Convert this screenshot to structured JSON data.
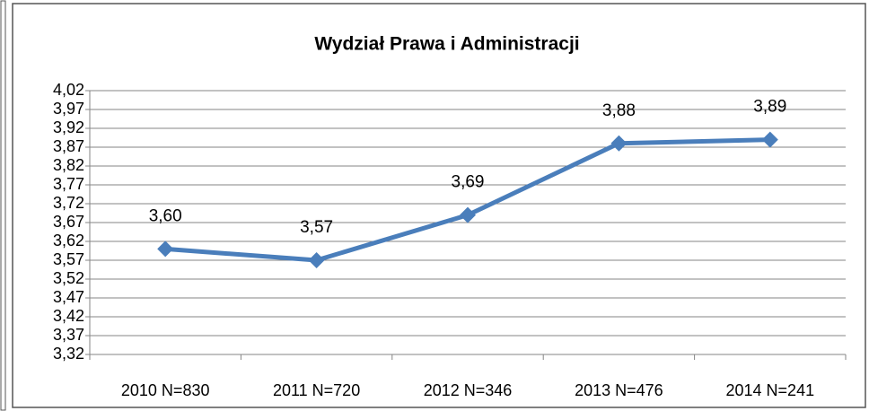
{
  "chart_data": {
    "type": "line",
    "title": "Wydział Prawa i Administracji",
    "categories": [
      "2010 N=830",
      "2011 N=720",
      "2012 N=346",
      "2013 N=476",
      "2014 N=241"
    ],
    "series": [
      {
        "color": "#4a7ebb",
        "values": [
          3.6,
          3.57,
          3.69,
          3.88,
          3.89
        ],
        "value_labels": [
          "3,60",
          "3,57",
          "3,69",
          "3,88",
          "3,89"
        ]
      }
    ],
    "ylim": [
      3.32,
      4.02
    ],
    "yticks": [
      {
        "value": 3.32,
        "label": "3,32"
      },
      {
        "value": 3.37,
        "label": "3,37"
      },
      {
        "value": 3.42,
        "label": "3,42"
      },
      {
        "value": 3.47,
        "label": "3,47"
      },
      {
        "value": 3.52,
        "label": "3,52"
      },
      {
        "value": 3.57,
        "label": "3,57"
      },
      {
        "value": 3.62,
        "label": "3,62"
      },
      {
        "value": 3.67,
        "label": "3,67"
      },
      {
        "value": 3.72,
        "label": "3,72"
      },
      {
        "value": 3.77,
        "label": "3,77"
      },
      {
        "value": 3.82,
        "label": "3,82"
      },
      {
        "value": 3.87,
        "label": "3,87"
      },
      {
        "value": 3.92,
        "label": "3,92"
      },
      {
        "value": 3.97,
        "label": "3,97"
      },
      {
        "value": 4.02,
        "label": "4,02"
      }
    ],
    "grid": true
  }
}
